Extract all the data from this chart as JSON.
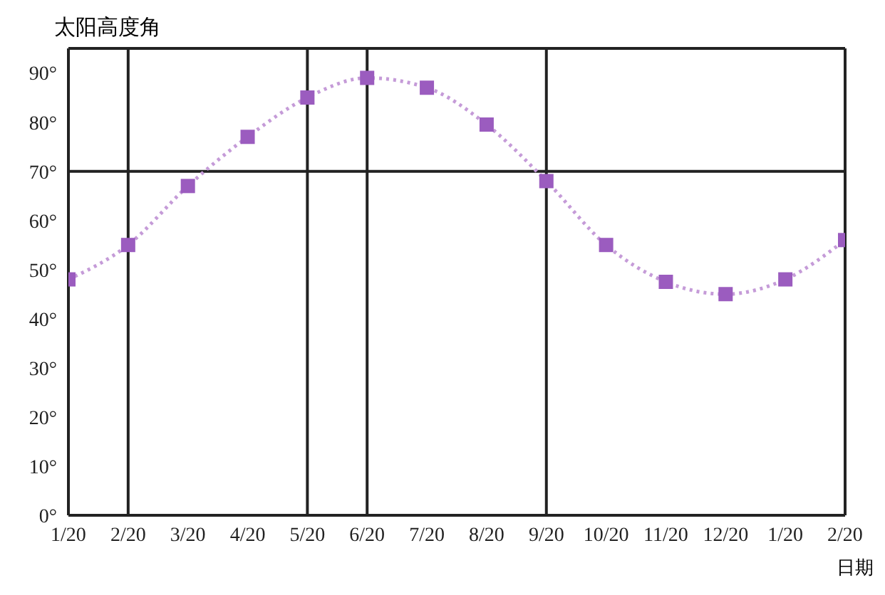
{
  "chart_data": {
    "type": "line",
    "xlabel": "日期",
    "ylabel": "太阳高度角",
    "categories": [
      "1/20",
      "2/20",
      "3/20",
      "4/20",
      "5/20",
      "6/20",
      "7/20",
      "8/20",
      "9/20",
      "10/20",
      "11/20",
      "12/20",
      "1/20",
      "2/20"
    ],
    "series": [
      {
        "color": "#c59bd8",
        "values": [
          48,
          55,
          67,
          77,
          85,
          89,
          87,
          79.5,
          68,
          55,
          47.5,
          45,
          48,
          56
        ]
      }
    ],
    "ylim": [
      0,
      95
    ],
    "yticks": [
      {
        "value": 0,
        "label": "0°"
      },
      {
        "value": 10,
        "label": "10°"
      },
      {
        "value": 20,
        "label": "20°"
      },
      {
        "value": 30,
        "label": "30°"
      },
      {
        "value": 40,
        "label": "40°"
      },
      {
        "value": 50,
        "label": "50°"
      },
      {
        "value": 60,
        "label": "60°"
      },
      {
        "value": 70,
        "label": "70°"
      },
      {
        "value": 80,
        "label": "80°"
      },
      {
        "value": 90,
        "label": "90°"
      }
    ],
    "ref_lines": [
      {
        "axis": "x",
        "value": "2/20",
        "color": "#222222"
      },
      {
        "axis": "x",
        "value": "5/20",
        "color": "#222222"
      },
      {
        "axis": "x",
        "value": "6/20",
        "color": "#222222"
      },
      {
        "axis": "x",
        "value": "9/20",
        "color": "#222222"
      },
      {
        "axis": "y",
        "value": 70,
        "color": "#222222"
      }
    ],
    "marker": "square",
    "line_style": "dotted",
    "grid": false,
    "legend": false
  }
}
